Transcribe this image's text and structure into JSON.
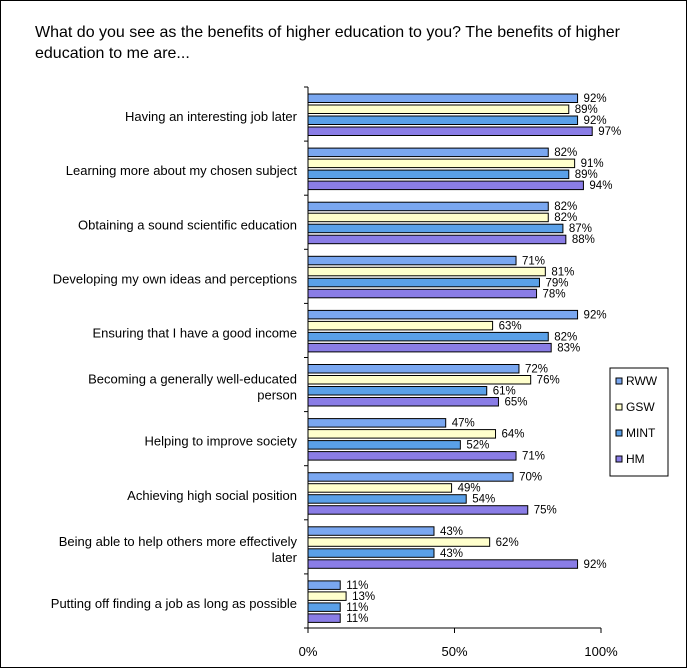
{
  "title": "What do you see as the benefits of higher education to you? The benefits of higher education to me are...",
  "chart_data": {
    "type": "bar",
    "orientation": "horizontal",
    "title": "What do you see as the benefits of higher education to you? The benefits of higher education to me are...",
    "categories": [
      "Having an interesting job later",
      "Learning more about my chosen subject",
      "Obtaining a sound scientific education",
      "Developing my own ideas and perceptions",
      "Ensuring that I have a good income",
      "Becoming a generally well-educated person",
      "Helping to improve society",
      "Achieving high social position",
      "Being able to help others more effectively later",
      "Putting off finding a job as long as possible"
    ],
    "category_lines": [
      [
        "Having an interesting job later"
      ],
      [
        "Learning more about my chosen subject"
      ],
      [
        "Obtaining a sound scientific education"
      ],
      [
        "Developing my own ideas and perceptions"
      ],
      [
        "Ensuring that I have a good income"
      ],
      [
        "Becoming a generally well-educated",
        "person"
      ],
      [
        "Helping to improve society"
      ],
      [
        "Achieving high social position"
      ],
      [
        "Being able to help others more effectively",
        "later"
      ],
      [
        "Putting off finding a job as long as possible"
      ]
    ],
    "series": [
      {
        "name": "RWW",
        "color": "#7aa7f0",
        "values": [
          92,
          82,
          82,
          71,
          92,
          72,
          47,
          70,
          43,
          11
        ]
      },
      {
        "name": "GSW",
        "color": "#ffffcc",
        "values": [
          89,
          91,
          82,
          81,
          63,
          76,
          64,
          49,
          62,
          13
        ]
      },
      {
        "name": "MINT",
        "color": "#5aa0e8",
        "values": [
          92,
          89,
          87,
          79,
          82,
          61,
          52,
          54,
          43,
          11
        ]
      },
      {
        "name": "HM",
        "color": "#8a7de6",
        "values": [
          97,
          94,
          88,
          78,
          83,
          65,
          71,
          75,
          92,
          11
        ]
      }
    ],
    "value_suffix": "%",
    "xlim": [
      0,
      100
    ],
    "xticks": [
      "0%",
      "50%",
      "100%"
    ],
    "legend_position": "right",
    "grid": false
  }
}
